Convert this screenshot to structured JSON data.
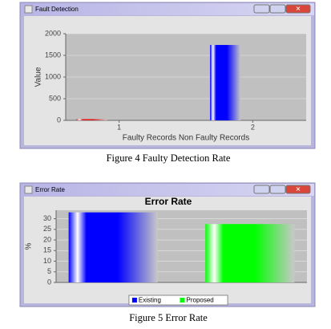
{
  "chart_data": [
    {
      "type": "bar",
      "window_title": "Fault Detection",
      "y_label": "Value",
      "x_label": "Faulty Records Non Faulty Records",
      "x": [
        1,
        2
      ],
      "values": [
        30,
        1740
      ],
      "colors": [
        "#e02020",
        "#0000ff"
      ],
      "xlim": [
        0.6,
        2.4
      ],
      "xticks": [
        1,
        2
      ],
      "ylim": [
        0,
        2000
      ],
      "yticks": [
        0,
        500,
        1000,
        1500,
        2000
      ],
      "grid": true,
      "caption": "Figure 4 Faulty Detection Rate"
    },
    {
      "type": "grouped_bar",
      "window_title": "Error Rate",
      "title": "Error Rate",
      "y_label": "%",
      "categories": [
        null
      ],
      "series": [
        {
          "name": "Existing",
          "color": "#0000ff",
          "values": [
            33
          ]
        },
        {
          "name": "Proposed",
          "color": "#00ff00",
          "values": [
            27.5
          ]
        }
      ],
      "ylim": [
        0,
        34
      ],
      "yticks": [
        0,
        5,
        10,
        15,
        20,
        25,
        30
      ],
      "grid": true,
      "legend": "bottom",
      "caption": "Figure 5 Error Rate"
    }
  ]
}
